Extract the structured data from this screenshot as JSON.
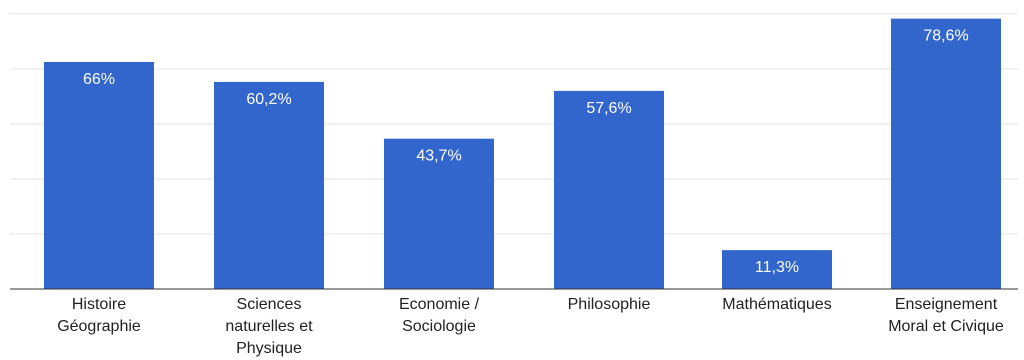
{
  "chart_data": {
    "type": "bar",
    "title": "",
    "xlabel": "",
    "ylabel": "",
    "ylim": [
      0,
      100
    ],
    "grid": true,
    "categories": [
      [
        "Histoire",
        "Géographie"
      ],
      [
        "Sciences",
        "naturelles et",
        "Physique"
      ],
      [
        "Economie /",
        "Sociologie"
      ],
      [
        "Philosophie"
      ],
      [
        "Mathématiques"
      ],
      [
        "Enseignement",
        "Moral et Civique"
      ]
    ],
    "values": [
      66,
      60.2,
      43.7,
      57.6,
      11.3,
      78.6
    ],
    "data_labels": [
      "66%",
      "60,2%",
      "43,7%",
      "57,6%",
      "11,3%",
      "78,6%"
    ],
    "colors": {
      "bar": "#3366cc",
      "grid": "#e3e3e3",
      "baseline": "#333333"
    }
  }
}
